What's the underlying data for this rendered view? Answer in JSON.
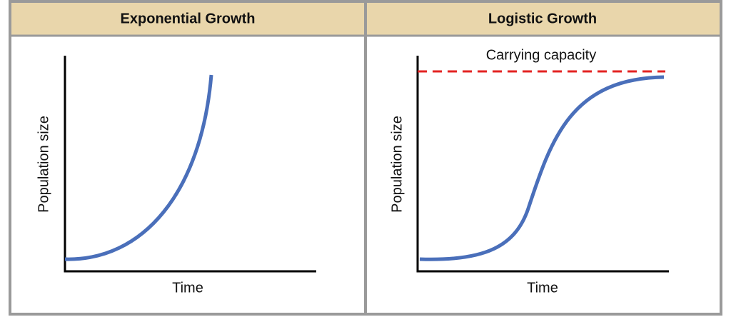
{
  "panels": [
    {
      "title": "Exponential Growth",
      "y_label": "Population size",
      "x_label": "Time"
    },
    {
      "title": "Logistic Growth",
      "y_label": "Population size",
      "x_label": "Time",
      "annotation": "Carrying capacity"
    }
  ]
}
